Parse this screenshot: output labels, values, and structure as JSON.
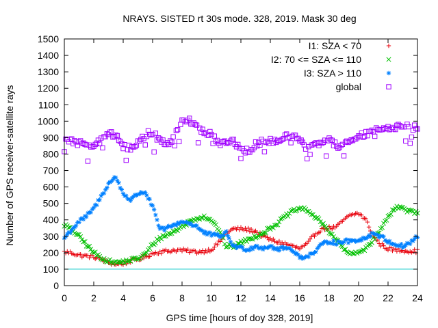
{
  "chart_data": {
    "type": "scatter",
    "title": "NRAYS. SISTED rt 30s mode. 328, 2019. Mask 30 deg",
    "xlabel": "GPS time [hours of doy 328, 2019]",
    "ylabel": "Number of GPS receiver-satellite rays",
    "xlim": [
      0,
      24
    ],
    "ylim": [
      0,
      1500
    ],
    "xticks": [
      0,
      2,
      4,
      6,
      8,
      10,
      12,
      14,
      16,
      18,
      20,
      22,
      24
    ],
    "yticks": [
      0,
      100,
      200,
      300,
      400,
      500,
      600,
      700,
      800,
      900,
      1000,
      1100,
      1200,
      1300,
      1400,
      1500
    ],
    "grid": false,
    "legend_position": "top-right",
    "threshold_line": {
      "y": 100,
      "color": "#00c8c8"
    },
    "series": [
      {
        "name": "I1: SZA < 70",
        "marker": "+",
        "color": "#e8000b",
        "x": [
          0,
          0.5,
          1,
          1.5,
          2,
          2.5,
          3,
          3.5,
          4,
          4.5,
          5,
          5.5,
          6,
          6.5,
          7,
          7.5,
          8,
          8.5,
          9,
          9.5,
          10,
          10.5,
          11,
          11.5,
          12,
          12.5,
          13,
          13.5,
          14,
          14.5,
          15,
          15.5,
          16,
          16.5,
          17,
          17.5,
          18,
          18.5,
          19,
          19.5,
          20,
          20.5,
          21,
          21.5,
          22,
          22.5,
          23,
          23.5,
          24
        ],
        "values": [
          205,
          200,
          185,
          180,
          175,
          160,
          140,
          130,
          135,
          150,
          160,
          175,
          195,
          205,
          210,
          215,
          215,
          210,
          205,
          210,
          220,
          260,
          320,
          345,
          345,
          340,
          330,
          300,
          280,
          265,
          255,
          240,
          225,
          250,
          310,
          345,
          350,
          355,
          400,
          430,
          440,
          400,
          300,
          250,
          225,
          215,
          215,
          210,
          210
        ]
      },
      {
        "name": "I2: 70 <= SZA <= 110",
        "marker": "x",
        "color": "#00c000",
        "x": [
          0,
          0.5,
          1,
          1.5,
          2,
          2.5,
          3,
          3.5,
          4,
          4.5,
          5,
          5.5,
          6,
          6.5,
          7,
          7.5,
          8,
          8.5,
          9,
          9.5,
          10,
          10.5,
          11,
          11.5,
          12,
          12.5,
          13,
          13.5,
          14,
          14.5,
          15,
          15.5,
          16,
          16.5,
          17,
          17.5,
          18,
          18.5,
          19,
          19.5,
          20,
          20.5,
          21,
          21.5,
          22,
          22.5,
          23,
          23.5,
          24
        ],
        "values": [
          370,
          340,
          300,
          250,
          200,
          170,
          150,
          140,
          145,
          155,
          165,
          190,
          250,
          290,
          310,
          330,
          360,
          390,
          410,
          420,
          400,
          340,
          240,
          240,
          260,
          280,
          300,
          320,
          350,
          380,
          420,
          450,
          470,
          460,
          420,
          380,
          330,
          280,
          220,
          190,
          200,
          230,
          280,
          340,
          420,
          480,
          470,
          450,
          440
        ]
      },
      {
        "name": "I3: SZA > 110",
        "marker": "*",
        "color": "#0080ff",
        "x": [
          0,
          0.5,
          1,
          1.5,
          2,
          2.5,
          3,
          3.5,
          4,
          4.5,
          5,
          5.5,
          6,
          6.5,
          7,
          7.5,
          8,
          8.5,
          9,
          9.5,
          10,
          10.5,
          11,
          11.5,
          12,
          12.5,
          13,
          13.5,
          14,
          14.5,
          15,
          15.5,
          16,
          16.5,
          17,
          17.5,
          18,
          18.5,
          19,
          19.5,
          20,
          20.5,
          21,
          21.5,
          22,
          22.5,
          23,
          23.5,
          24
        ],
        "values": [
          290,
          340,
          390,
          420,
          470,
          540,
          620,
          660,
          560,
          520,
          560,
          570,
          480,
          340,
          350,
          370,
          390,
          380,
          360,
          320,
          310,
          300,
          320,
          240,
          230,
          220,
          240,
          230,
          240,
          220,
          230,
          220,
          170,
          180,
          200,
          250,
          270,
          260,
          270,
          270,
          280,
          290,
          320,
          300,
          270,
          250,
          240,
          260,
          300
        ]
      },
      {
        "name": "global",
        "marker": "square",
        "color": "#a000ff",
        "x": [
          0,
          0.5,
          1,
          1.5,
          2,
          2.5,
          3,
          3.5,
          4,
          4.5,
          5,
          5.5,
          6,
          6.5,
          7,
          7.5,
          8,
          8.5,
          9,
          9.5,
          10,
          10.5,
          11,
          11.5,
          12,
          12.5,
          13,
          13.5,
          14,
          14.5,
          15,
          15.5,
          16,
          16.5,
          17,
          17.5,
          18,
          18.5,
          19,
          19.5,
          20,
          20.5,
          21,
          21.5,
          22,
          22.5,
          23,
          23.5,
          24
        ],
        "values": [
          880,
          875,
          865,
          870,
          855,
          880,
          920,
          920,
          850,
          835,
          870,
          920,
          930,
          880,
          860,
          910,
          990,
          1000,
          960,
          940,
          920,
          860,
          870,
          880,
          830,
          820,
          860,
          880,
          880,
          870,
          905,
          915,
          880,
          860,
          850,
          880,
          880,
          850,
          860,
          880,
          905,
          920,
          940,
          950,
          955,
          965,
          975,
          960,
          965
        ]
      }
    ]
  }
}
